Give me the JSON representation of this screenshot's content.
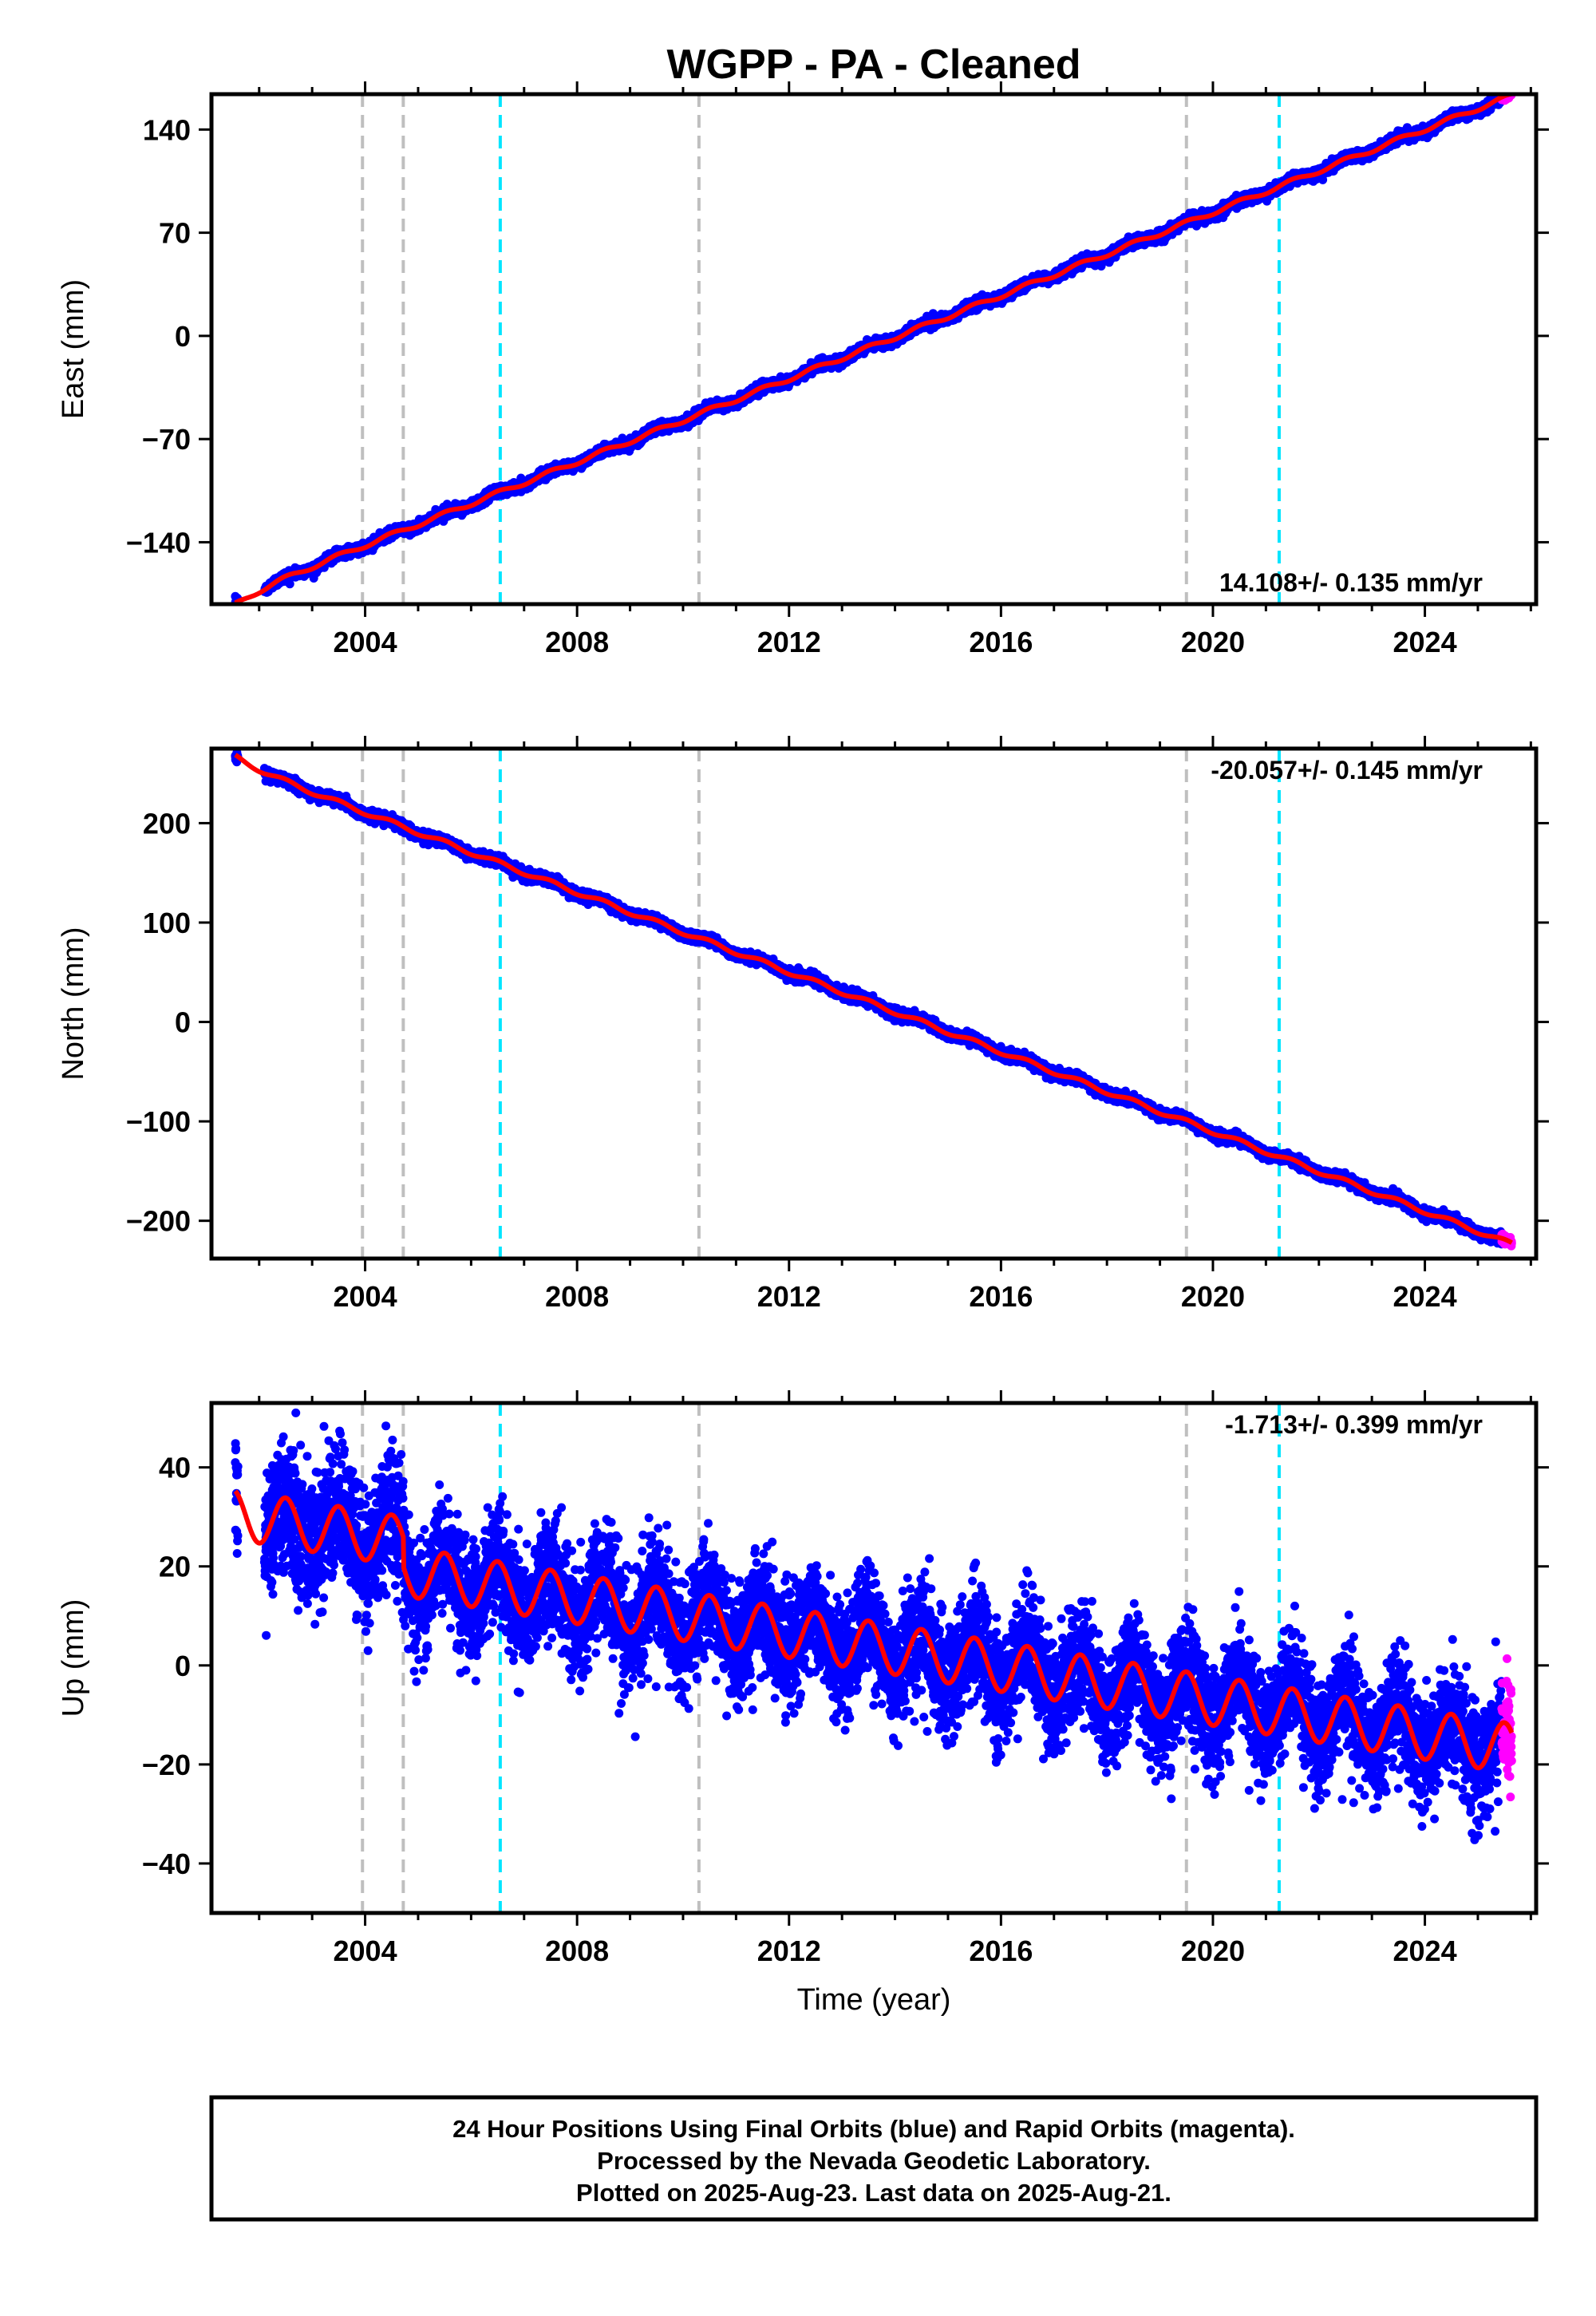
{
  "colors": {
    "final_orbits": "#0000ff",
    "rapid_orbits": "#ff00ff",
    "model_fit": "#ff0000",
    "event_gray": "#bfbfbf",
    "event_cyan": "#00e5ff"
  },
  "chart_data": {
    "type": "scatter",
    "title": "WGPP  - PA - Cleaned",
    "xlabel": "Time (year)",
    "xlim": [
      2001.1,
      2026.1
    ],
    "x_ticks": [
      2004,
      2008,
      2012,
      2016,
      2020,
      2024
    ],
    "x_tick_labels": [
      "2004",
      "2008",
      "2012",
      "2016",
      "2020",
      "2024"
    ],
    "events": [
      {
        "x": 2003.95,
        "style": "gray"
      },
      {
        "x": 2004.72,
        "style": "gray"
      },
      {
        "x": 2006.55,
        "style": "cyan"
      },
      {
        "x": 2010.3,
        "style": "gray"
      },
      {
        "x": 2019.5,
        "style": "gray"
      },
      {
        "x": 2021.25,
        "style": "cyan"
      }
    ],
    "data_start": 2001.55,
    "data_end": 2025.64,
    "rapid_start": 2025.45,
    "panels": [
      {
        "component": "East",
        "ylabel": "East (mm)",
        "ylim": [
          -182,
          164
        ],
        "y_ticks": [
          -140,
          -70,
          0,
          70,
          140
        ],
        "y_tick_labels": [
          "−140",
          "−70",
          "0",
          "70",
          "140"
        ],
        "rate_label": "14.108+/- 0.135 mm/yr",
        "rate_position": "bottom-right",
        "model": {
          "ref_year": 2013.5,
          "value_at_ref": -8,
          "rate": 14.108,
          "annual_amp": 1.5,
          "post_2004_amp": 0,
          "early_transient": -6
        },
        "scatter": 1.6
      },
      {
        "component": "North",
        "ylabel": "North (mm)",
        "ylim": [
          -238,
          275
        ],
        "y_ticks": [
          -200,
          -100,
          0,
          100,
          200
        ],
        "y_tick_labels": [
          "−200",
          "−100",
          "0",
          "100",
          "200"
        ],
        "rate_label": "-20.057+/- 0.145 mm/yr",
        "rate_position": "top-right",
        "model": {
          "ref_year": 2013.5,
          "value_at_ref": 20,
          "rate": -20.057,
          "annual_amp": 2.2,
          "post_2004_amp": 0,
          "early_transient": 7
        },
        "scatter": 2.4
      },
      {
        "component": "Up",
        "ylabel": "Up (mm)",
        "ylim": [
          -50,
          53
        ],
        "y_ticks": [
          -40,
          -20,
          0,
          20,
          40
        ],
        "y_tick_labels": [
          "−40",
          "−20",
          "0",
          "20",
          "40"
        ],
        "rate_label": "-1.713+/- 0.399 mm/yr",
        "rate_position": "top-right",
        "model": {
          "ref_year": 2013.5,
          "value_at_ref": 4,
          "rate": -1.713,
          "annual_amp": 5,
          "post_2004_amp": 3,
          "early_transient": 0
        },
        "scatter": 5.5
      }
    ]
  },
  "footer": {
    "line1": "24 Hour Positions Using Final Orbits (blue) and Rapid Orbits (magenta).",
    "line2": "Processed by the Nevada Geodetic Laboratory.",
    "line3": "Plotted on 2025-Aug-23. Last data on 2025-Aug-21."
  }
}
